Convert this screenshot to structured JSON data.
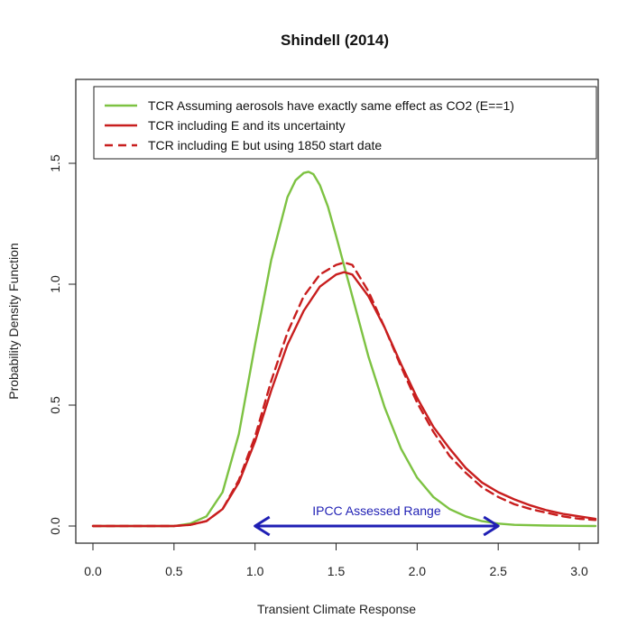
{
  "chart_data": {
    "type": "line",
    "title": "Shindell (2014)",
    "xlabel": "Transient Climate Response",
    "ylabel": "Probability Density Function",
    "xlim": [
      0.0,
      3.1
    ],
    "ylim": [
      0.0,
      1.8
    ],
    "x_ticks": [
      "0.0",
      "0.5",
      "1.0",
      "1.5",
      "2.0",
      "2.5",
      "3.0"
    ],
    "y_ticks": [
      "0.0",
      "0.5",
      "1.0",
      "1.5"
    ],
    "grid": false,
    "legend_placement": "top",
    "series": [
      {
        "name": "TCR Assuming aerosols have exactly same effect as CO2 (E==1)",
        "color": "#7dc242",
        "style": "solid",
        "x": [
          0.0,
          0.5,
          0.6,
          0.7,
          0.8,
          0.9,
          1.0,
          1.1,
          1.2,
          1.25,
          1.3,
          1.33,
          1.36,
          1.4,
          1.45,
          1.5,
          1.6,
          1.7,
          1.8,
          1.9,
          2.0,
          2.1,
          2.2,
          2.3,
          2.4,
          2.5,
          2.6,
          2.8,
          3.1
        ],
        "y": [
          0.0,
          0.0,
          0.01,
          0.04,
          0.14,
          0.38,
          0.75,
          1.1,
          1.36,
          1.43,
          1.46,
          1.465,
          1.455,
          1.41,
          1.32,
          1.2,
          0.95,
          0.7,
          0.49,
          0.32,
          0.2,
          0.12,
          0.07,
          0.04,
          0.02,
          0.01,
          0.005,
          0.002,
          0.0
        ]
      },
      {
        "name": "TCR including E and its uncertainty",
        "color": "#c81e1e",
        "style": "solid",
        "x": [
          0.0,
          0.5,
          0.6,
          0.7,
          0.8,
          0.9,
          1.0,
          1.1,
          1.2,
          1.3,
          1.4,
          1.5,
          1.55,
          1.6,
          1.7,
          1.8,
          1.9,
          2.0,
          2.1,
          2.2,
          2.3,
          2.4,
          2.5,
          2.6,
          2.7,
          2.8,
          2.9,
          3.0,
          3.1
        ],
        "y": [
          0.0,
          0.0,
          0.005,
          0.02,
          0.07,
          0.18,
          0.35,
          0.56,
          0.75,
          0.89,
          0.99,
          1.04,
          1.05,
          1.04,
          0.95,
          0.82,
          0.67,
          0.53,
          0.41,
          0.32,
          0.24,
          0.18,
          0.14,
          0.11,
          0.085,
          0.065,
          0.05,
          0.04,
          0.03
        ]
      },
      {
        "name": "TCR including E but using 1850 start date",
        "color": "#c81e1e",
        "style": "dashed",
        "x": [
          0.0,
          0.5,
          0.6,
          0.7,
          0.8,
          0.9,
          1.0,
          1.1,
          1.2,
          1.3,
          1.4,
          1.5,
          1.55,
          1.6,
          1.7,
          1.8,
          1.9,
          2.0,
          2.1,
          2.2,
          2.3,
          2.4,
          2.5,
          2.6,
          2.7,
          2.8,
          2.9,
          3.0,
          3.1
        ],
        "y": [
          0.0,
          0.0,
          0.005,
          0.02,
          0.07,
          0.19,
          0.37,
          0.6,
          0.8,
          0.95,
          1.04,
          1.08,
          1.09,
          1.08,
          0.97,
          0.82,
          0.66,
          0.51,
          0.39,
          0.29,
          0.22,
          0.16,
          0.12,
          0.09,
          0.07,
          0.055,
          0.04,
          0.03,
          0.025
        ]
      }
    ],
    "annotations": [
      {
        "text": "IPCC Assessed Range",
        "color": "#1f1fb4",
        "x_start": 1.0,
        "x_end": 2.5,
        "y": 0.0,
        "arrow": "double-headed"
      }
    ]
  }
}
